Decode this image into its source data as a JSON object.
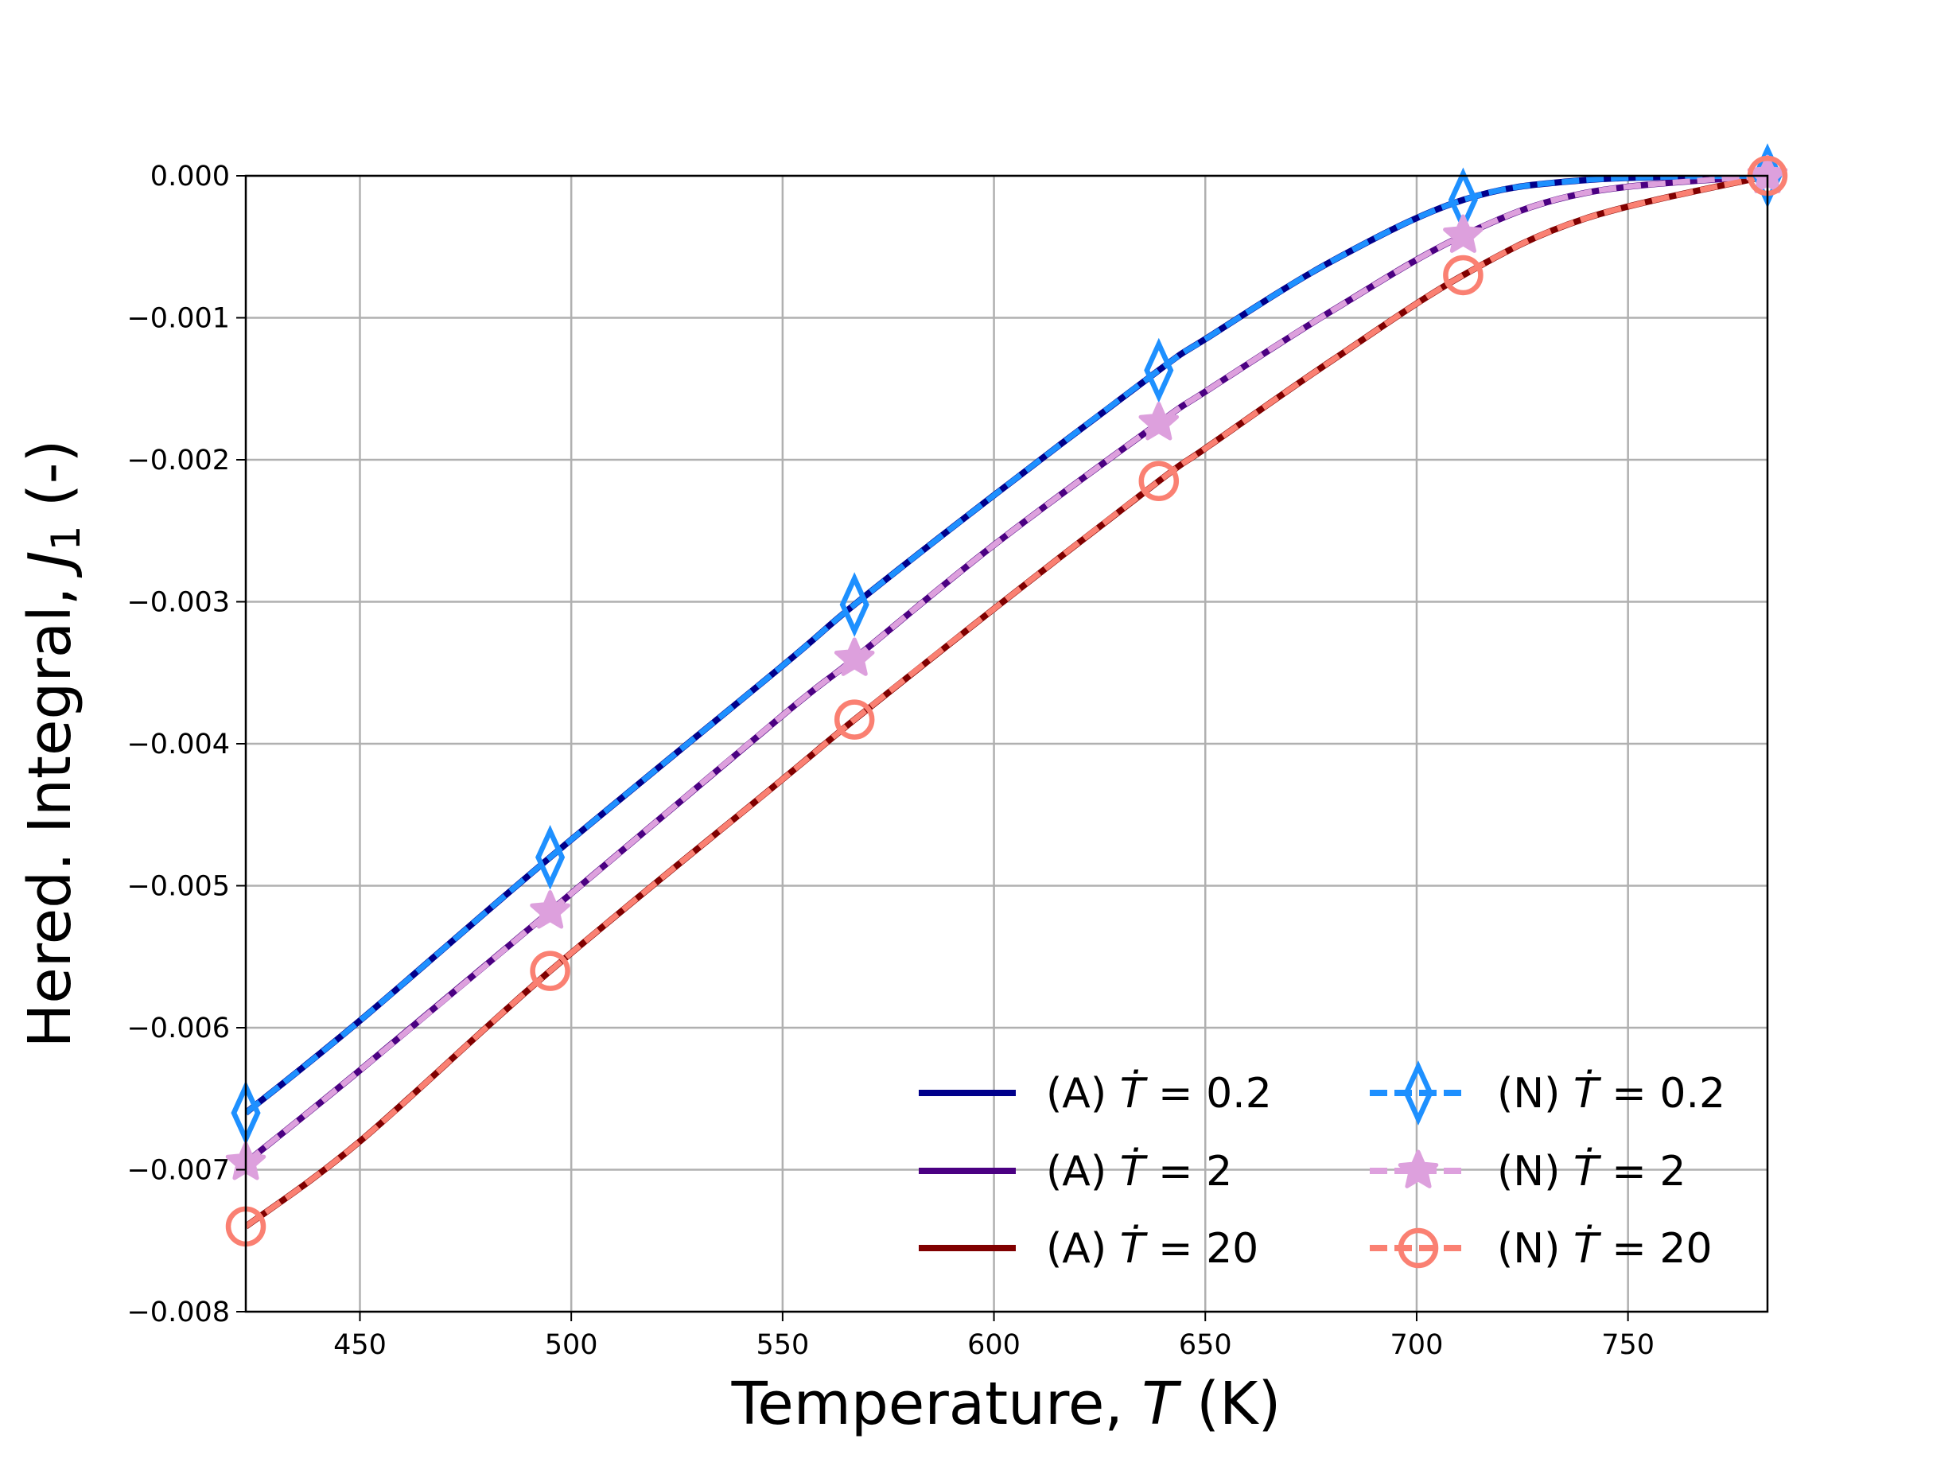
{
  "chart_data": {
    "type": "line",
    "title": "",
    "xlabel": {
      "prefix": "Temperature, ",
      "var": "T",
      "suffix": " (K)"
    },
    "ylabel": {
      "prefix": "Hered. Integral, ",
      "var": "J",
      "sub": "1",
      "suffix": " (-)"
    },
    "xlim": [
      423,
      783
    ],
    "ylim": [
      -0.008,
      0.0
    ],
    "xticks": [
      450,
      500,
      550,
      600,
      650,
      700,
      750
    ],
    "xtick_labels": [
      "450",
      "500",
      "550",
      "600",
      "650",
      "700",
      "750"
    ],
    "yticks": [
      0.0,
      -0.001,
      -0.002,
      -0.003,
      -0.004,
      -0.005,
      -0.006,
      -0.007,
      -0.008
    ],
    "ytick_labels": [
      "0.000",
      "−0.001",
      "−0.002",
      "−0.003",
      "−0.004",
      "−0.005",
      "−0.006",
      "−0.007",
      "−0.008"
    ],
    "grid": true,
    "legend_position": "lower-right",
    "series": [
      {
        "name": "(A) Ṫ = 0.2",
        "legend_prefix": "(A) ",
        "rate": "0.2",
        "color": "#00008b",
        "style": "solid",
        "marker": "none",
        "x": [
          423,
          450,
          495,
          550,
          567,
          600,
          639,
          650,
          680,
          711,
          740,
          783
        ],
        "y": [
          -0.0066,
          -0.00595,
          -0.0048,
          -0.00345,
          -0.00302,
          -0.00225,
          -0.00137,
          -0.00115,
          -0.0006,
          -0.00017,
          -3e-05,
          0.0
        ]
      },
      {
        "name": "(A) Ṫ = 2",
        "legend_prefix": "(A) ",
        "rate": "2",
        "color": "#4b0082",
        "style": "solid",
        "marker": "none",
        "x": [
          423,
          450,
          495,
          550,
          567,
          600,
          639,
          650,
          680,
          711,
          740,
          783
        ],
        "y": [
          -0.00695,
          -0.0063,
          -0.00518,
          -0.0038,
          -0.0034,
          -0.0026,
          -0.00174,
          -0.00152,
          -0.00095,
          -0.00042,
          -0.00012,
          0.0
        ]
      },
      {
        "name": "(A) Ṫ = 20",
        "legend_prefix": "(A) ",
        "rate": "20",
        "color": "#800000",
        "style": "solid",
        "marker": "none",
        "x": [
          423,
          450,
          495,
          550,
          567,
          600,
          639,
          650,
          680,
          711,
          740,
          783
        ],
        "y": [
          -0.0074,
          -0.0068,
          -0.0056,
          -0.00425,
          -0.00383,
          -0.00305,
          -0.00215,
          -0.00192,
          -0.0013,
          -0.0007,
          -0.0003,
          0.0
        ]
      },
      {
        "name": "(N) Ṫ = 0.2",
        "legend_prefix": "(N) ",
        "rate": "0.2",
        "color": "#1e90ff",
        "style": "dashed",
        "marker": "diamond",
        "x": [
          423,
          450,
          495,
          550,
          567,
          600,
          639,
          650,
          680,
          711,
          740,
          783
        ],
        "y": [
          -0.0066,
          -0.00595,
          -0.0048,
          -0.00345,
          -0.00302,
          -0.00225,
          -0.00137,
          -0.00115,
          -0.0006,
          -0.00017,
          -3e-05,
          0.0
        ],
        "markers_x": [
          423,
          495,
          567,
          639,
          711,
          783
        ],
        "markers_y": [
          -0.0066,
          -0.0048,
          -0.00302,
          -0.00137,
          -0.00017,
          0.0
        ]
      },
      {
        "name": "(N) Ṫ = 2",
        "legend_prefix": "(N) ",
        "rate": "2",
        "color": "#dda0dd",
        "style": "dashed",
        "marker": "star",
        "x": [
          423,
          450,
          495,
          550,
          567,
          600,
          639,
          650,
          680,
          711,
          740,
          783
        ],
        "y": [
          -0.00695,
          -0.0063,
          -0.00518,
          -0.0038,
          -0.0034,
          -0.0026,
          -0.00174,
          -0.00152,
          -0.00095,
          -0.00042,
          -0.00012,
          0.0
        ],
        "markers_x": [
          423,
          495,
          567,
          639,
          711,
          783
        ],
        "markers_y": [
          -0.00695,
          -0.00518,
          -0.0034,
          -0.00174,
          -0.00042,
          0.0
        ]
      },
      {
        "name": "(N) Ṫ = 20",
        "legend_prefix": "(N) ",
        "rate": "20",
        "color": "#fa8072",
        "style": "dashed",
        "marker": "circle",
        "x": [
          423,
          450,
          495,
          550,
          567,
          600,
          639,
          650,
          680,
          711,
          740,
          783
        ],
        "y": [
          -0.0074,
          -0.0068,
          -0.0056,
          -0.00425,
          -0.00383,
          -0.00305,
          -0.00215,
          -0.00192,
          -0.0013,
          -0.0007,
          -0.0003,
          0.0
        ],
        "markers_x": [
          423,
          495,
          567,
          639,
          711,
          783
        ],
        "markers_y": [
          -0.0074,
          -0.0056,
          -0.00383,
          -0.00215,
          -0.0007,
          0.0
        ]
      }
    ]
  }
}
